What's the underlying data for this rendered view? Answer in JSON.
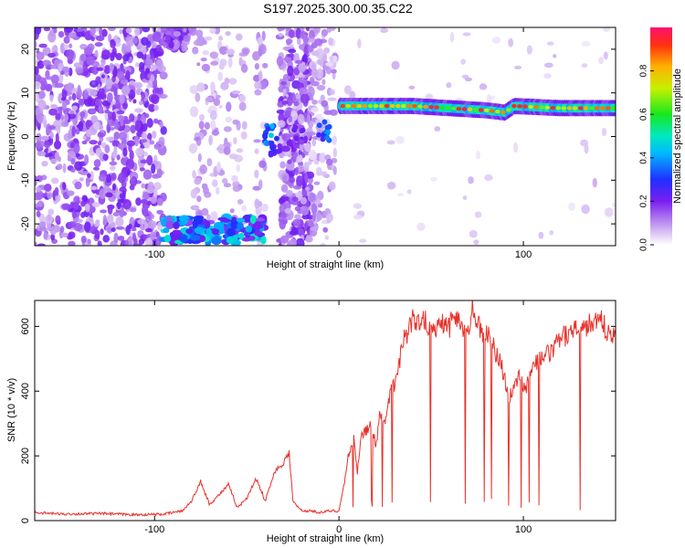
{
  "title": "S197.2025.300.00.35.C22",
  "chart_data": [
    {
      "type": "heatmap",
      "xlabel": "Height of straight line (km)",
      "ylabel": "Frequency (Hz)",
      "xlim": [
        -165,
        150
      ],
      "ylim": [
        -25,
        25
      ],
      "xticks": [
        -100,
        0,
        100
      ],
      "yticks": [
        -20,
        -10,
        0,
        10,
        20
      ],
      "colorbar": {
        "label": "Normalized spectral amplitude",
        "range": [
          0,
          1
        ],
        "ticks": [
          "0.0",
          "0.2",
          "0.4",
          "0.6",
          "0.8"
        ]
      },
      "ridge": [
        {
          "x": 0,
          "y": 7
        },
        {
          "x": 20,
          "y": 7
        },
        {
          "x": 40,
          "y": 7
        },
        {
          "x": 60,
          "y": 6.5
        },
        {
          "x": 80,
          "y": 6
        },
        {
          "x": 90,
          "y": 5.5
        },
        {
          "x": 95,
          "y": 7
        },
        {
          "x": 120,
          "y": 6.5
        },
        {
          "x": 150,
          "y": 6.5
        }
      ]
    },
    {
      "type": "line",
      "xlabel": "Height of straight line (km)",
      "ylabel": "SNR (10 * v/v)",
      "xlim": [
        -165,
        150
      ],
      "ylim": [
        0,
        680
      ],
      "xticks": [
        -100,
        0,
        100
      ],
      "yticks": [
        0,
        200,
        400,
        600
      ],
      "series": [
        {
          "color": "#e8302a",
          "x": [
            -165,
            -150,
            -130,
            -110,
            -95,
            -85,
            -80,
            -75,
            -70,
            -65,
            -60,
            -55,
            -50,
            -45,
            -40,
            -35,
            -30,
            -27,
            -25,
            -22,
            -20,
            -15,
            -10,
            -5,
            0,
            3,
            5,
            8,
            10,
            12,
            15,
            18,
            20,
            22,
            25,
            28,
            30,
            33,
            35,
            38,
            40,
            42,
            45,
            48,
            50,
            55,
            60,
            62,
            65,
            70,
            72,
            75,
            78,
            80,
            85,
            88,
            90,
            92,
            95,
            98,
            100,
            102,
            105,
            110,
            115,
            120,
            125,
            130,
            135,
            140,
            145,
            150
          ],
          "y": [
            25,
            20,
            22,
            18,
            20,
            30,
            60,
            120,
            50,
            80,
            110,
            40,
            70,
            130,
            60,
            150,
            180,
            210,
            60,
            40,
            30,
            30,
            25,
            30,
            30,
            120,
            200,
            250,
            150,
            260,
            280,
            300,
            220,
            320,
            300,
            400,
            420,
            500,
            560,
            590,
            620,
            600,
            640,
            610,
            580,
            620,
            600,
            640,
            620,
            580,
            660,
            610,
            560,
            590,
            520,
            480,
            440,
            380,
            400,
            450,
            410,
            420,
            480,
            500,
            520,
            560,
            580,
            610,
            600,
            630,
            590,
            580
          ]
        }
      ]
    }
  ]
}
